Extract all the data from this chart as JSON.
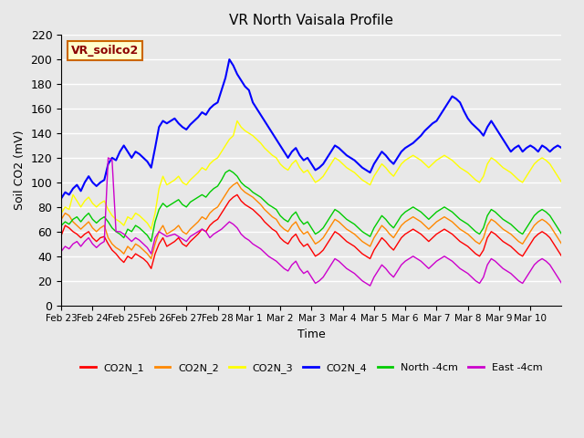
{
  "title": "VR North Vaisala Profile",
  "xlabel": "Time",
  "ylabel": "Soil CO2 (mV)",
  "ylim": [
    0,
    220
  ],
  "xlim": [
    0,
    16
  ],
  "background_color": "#e8e8e8",
  "plot_bg_color": "#e8e8e8",
  "annotation_text": "VR_soilco2",
  "annotation_bg": "#ffffcc",
  "annotation_border": "#cc6600",
  "tick_labels": [
    "Feb 23",
    "Feb 24",
    "Feb 25",
    "Feb 26",
    "Feb 27",
    "Feb 28",
    "Mar 1",
    "Mar 2",
    "Mar 3",
    "Mar 4",
    "Mar 5",
    "Mar 6",
    "Mar 7",
    "Mar 8",
    "Mar 9",
    "Mar 10"
  ],
  "series_colors": {
    "CO2N_1": "#ff0000",
    "CO2N_2": "#ff8800",
    "CO2N_3": "#ffff00",
    "CO2N_4": "#0000ff",
    "North_4cm": "#00cc00",
    "East_4cm": "#cc00cc"
  },
  "legend_labels": [
    "CO2N_1",
    "CO2N_2",
    "CO2N_3",
    "CO2N_4",
    "North -4cm",
    "East -4cm"
  ],
  "legend_colors": [
    "#ff0000",
    "#ff8800",
    "#ffff00",
    "#0000ff",
    "#00cc00",
    "#cc00cc"
  ],
  "CO2N_1": [
    57,
    65,
    63,
    60,
    58,
    55,
    58,
    60,
    55,
    52,
    55,
    56,
    50,
    45,
    42,
    38,
    35,
    40,
    38,
    42,
    40,
    38,
    35,
    30,
    42,
    50,
    55,
    48,
    50,
    52,
    55,
    50,
    48,
    52,
    55,
    58,
    62,
    60,
    65,
    68,
    70,
    75,
    80,
    85,
    88,
    90,
    85,
    82,
    80,
    78,
    75,
    72,
    68,
    65,
    62,
    60,
    55,
    52,
    50,
    55,
    58,
    52,
    48,
    50,
    45,
    40,
    42,
    45,
    50,
    55,
    60,
    58,
    55,
    52,
    50,
    48,
    45,
    42,
    40,
    38,
    45,
    50,
    55,
    52,
    48,
    45,
    50,
    55,
    58,
    60,
    62,
    60,
    58,
    55,
    52,
    55,
    58,
    60,
    62,
    60,
    58,
    55,
    52,
    50,
    48,
    45,
    42,
    40,
    45,
    55,
    60,
    58,
    55,
    52,
    50,
    48,
    45,
    42,
    40,
    45,
    50,
    55,
    58,
    60,
    58,
    55,
    50,
    45,
    40
  ],
  "CO2N_2": [
    70,
    75,
    73,
    68,
    65,
    62,
    65,
    68,
    63,
    60,
    63,
    65,
    55,
    50,
    47,
    45,
    42,
    48,
    45,
    50,
    48,
    45,
    42,
    38,
    50,
    60,
    65,
    58,
    60,
    62,
    65,
    60,
    58,
    62,
    65,
    68,
    72,
    70,
    75,
    78,
    80,
    85,
    90,
    95,
    98,
    100,
    95,
    92,
    90,
    88,
    85,
    82,
    78,
    75,
    72,
    70,
    65,
    62,
    60,
    65,
    68,
    62,
    58,
    60,
    55,
    50,
    52,
    55,
    60,
    65,
    70,
    68,
    65,
    62,
    60,
    58,
    55,
    52,
    50,
    48,
    55,
    60,
    65,
    62,
    58,
    55,
    60,
    65,
    68,
    70,
    72,
    70,
    68,
    65,
    62,
    65,
    68,
    70,
    72,
    70,
    68,
    65,
    62,
    60,
    58,
    55,
    52,
    50,
    55,
    65,
    70,
    68,
    65,
    62,
    60,
    58,
    55,
    52,
    50,
    55,
    60,
    65,
    68,
    70,
    68,
    65,
    60,
    55,
    50
  ],
  "CO2N_3": [
    75,
    80,
    78,
    90,
    85,
    80,
    85,
    88,
    83,
    80,
    83,
    85,
    78,
    73,
    70,
    68,
    65,
    72,
    70,
    75,
    73,
    70,
    67,
    62,
    75,
    95,
    105,
    98,
    100,
    102,
    105,
    100,
    98,
    102,
    105,
    108,
    112,
    110,
    115,
    118,
    120,
    125,
    130,
    135,
    138,
    150,
    145,
    142,
    140,
    138,
    135,
    132,
    128,
    125,
    122,
    120,
    115,
    112,
    110,
    115,
    118,
    112,
    108,
    110,
    105,
    100,
    102,
    105,
    110,
    115,
    120,
    118,
    115,
    112,
    110,
    108,
    105,
    102,
    100,
    98,
    105,
    110,
    115,
    112,
    108,
    105,
    110,
    115,
    118,
    120,
    122,
    120,
    118,
    115,
    112,
    115,
    118,
    120,
    122,
    120,
    118,
    115,
    112,
    110,
    108,
    105,
    102,
    100,
    105,
    115,
    120,
    118,
    115,
    112,
    110,
    108,
    105,
    102,
    100,
    105,
    110,
    115,
    118,
    120,
    118,
    115,
    110,
    105,
    100
  ],
  "CO2N_4": [
    87,
    92,
    90,
    95,
    98,
    93,
    100,
    105,
    100,
    97,
    100,
    102,
    115,
    120,
    118,
    125,
    130,
    125,
    120,
    125,
    123,
    120,
    117,
    112,
    128,
    145,
    150,
    148,
    150,
    152,
    148,
    145,
    143,
    147,
    150,
    153,
    157,
    155,
    160,
    163,
    165,
    175,
    185,
    200,
    195,
    188,
    183,
    178,
    175,
    165,
    160,
    155,
    150,
    145,
    140,
    135,
    130,
    125,
    120,
    125,
    128,
    122,
    118,
    120,
    115,
    110,
    112,
    115,
    120,
    125,
    130,
    128,
    125,
    122,
    120,
    118,
    115,
    112,
    110,
    108,
    115,
    120,
    125,
    122,
    118,
    115,
    120,
    125,
    128,
    130,
    132,
    135,
    138,
    142,
    145,
    148,
    150,
    155,
    160,
    165,
    170,
    168,
    165,
    158,
    152,
    148,
    145,
    142,
    138,
    145,
    150,
    145,
    140,
    135,
    130,
    125,
    128,
    130,
    125,
    128,
    130,
    128,
    125,
    130,
    128,
    125,
    128,
    130,
    128
  ],
  "North_4cm": [
    65,
    68,
    66,
    70,
    72,
    68,
    72,
    75,
    70,
    67,
    70,
    72,
    68,
    63,
    60,
    58,
    55,
    62,
    60,
    65,
    63,
    60,
    57,
    52,
    68,
    78,
    83,
    80,
    82,
    84,
    86,
    82,
    80,
    84,
    86,
    88,
    90,
    88,
    92,
    95,
    97,
    102,
    108,
    110,
    108,
    105,
    100,
    97,
    95,
    92,
    90,
    88,
    85,
    82,
    80,
    78,
    73,
    70,
    68,
    73,
    76,
    70,
    66,
    68,
    63,
    58,
    60,
    63,
    68,
    73,
    78,
    76,
    73,
    70,
    68,
    66,
    63,
    60,
    58,
    56,
    63,
    68,
    73,
    70,
    66,
    63,
    68,
    73,
    76,
    78,
    80,
    78,
    76,
    73,
    70,
    73,
    76,
    78,
    80,
    78,
    76,
    73,
    70,
    68,
    66,
    63,
    60,
    58,
    63,
    73,
    78,
    76,
    73,
    70,
    68,
    66,
    63,
    60,
    58,
    63,
    68,
    73,
    76,
    78,
    76,
    73,
    68,
    63,
    58
  ],
  "East_4cm": [
    44,
    48,
    46,
    50,
    52,
    48,
    52,
    55,
    50,
    47,
    50,
    52,
    120,
    118,
    60,
    60,
    58,
    55,
    52,
    55,
    53,
    50,
    47,
    42,
    55,
    60,
    58,
    56,
    57,
    58,
    56,
    54,
    52,
    56,
    58,
    60,
    62,
    60,
    55,
    58,
    60,
    62,
    65,
    68,
    66,
    63,
    58,
    55,
    53,
    50,
    48,
    46,
    43,
    40,
    38,
    36,
    33,
    30,
    28,
    33,
    36,
    30,
    26,
    28,
    23,
    18,
    20,
    23,
    28,
    33,
    38,
    36,
    33,
    30,
    28,
    26,
    23,
    20,
    18,
    16,
    23,
    28,
    33,
    30,
    26,
    23,
    28,
    33,
    36,
    38,
    40,
    38,
    36,
    33,
    30,
    33,
    36,
    38,
    40,
    38,
    36,
    33,
    30,
    28,
    26,
    23,
    20,
    18,
    23,
    33,
    38,
    36,
    33,
    30,
    28,
    26,
    23,
    20,
    18,
    23,
    28,
    33,
    36,
    38,
    36,
    33,
    28,
    23,
    18
  ]
}
